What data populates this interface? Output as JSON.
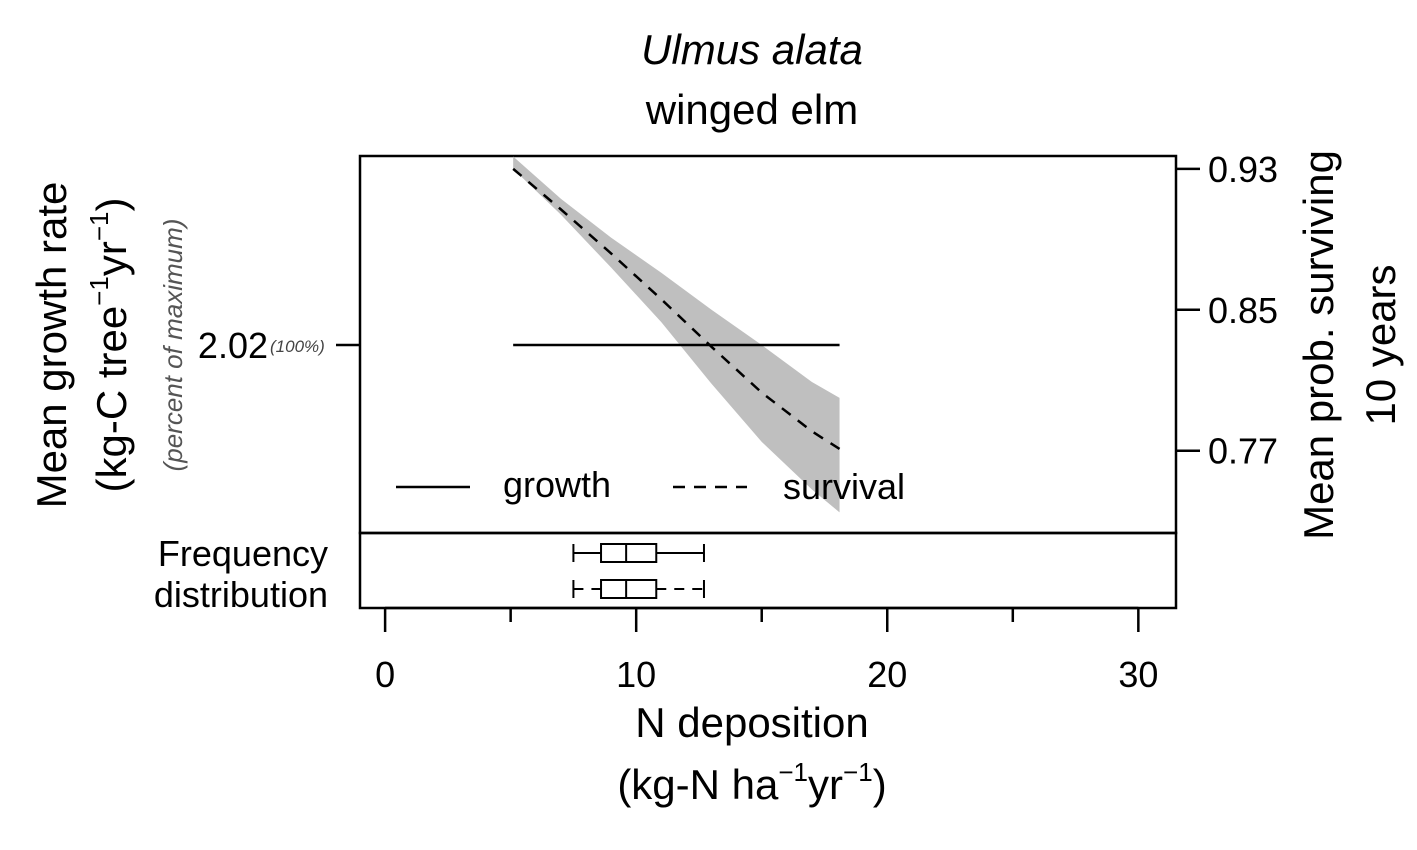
{
  "chart_data": {
    "type": "line",
    "title": "Ulmus alata",
    "subtitle": "winged elm",
    "xlabel": {
      "main": "N deposition",
      "unit_open": "(kg-N ha",
      "unit_mid": "yr",
      "unit_close": ")",
      "exp": "−1"
    },
    "ylabel_left": {
      "line1": "Mean growth rate",
      "unit_open": "(kg-C tree",
      "unit_mid": "yr",
      "unit_close": ")",
      "exp": "−1",
      "note": "(percent of maximum)"
    },
    "ylabel_right": {
      "line1": "Mean prob. surviving",
      "line2": "10 years"
    },
    "xlim": [
      -1,
      31.5
    ],
    "x_ticks": [
      0,
      10,
      20,
      30
    ],
    "x_tick_labels": [
      "0",
      "10",
      "20",
      "30"
    ],
    "x_minor_ticks": [
      5,
      15,
      25
    ],
    "y_left_ticks": [
      {
        "value": 2.02,
        "label": "2.02",
        "pct": "(100%)"
      }
    ],
    "y_right_ticks": [
      {
        "value": 0.93,
        "label": "0.93"
      },
      {
        "value": 0.85,
        "label": "0.85"
      },
      {
        "value": 0.77,
        "label": "0.77"
      }
    ],
    "y_right_lim": [
      0.7233,
      0.9373
    ],
    "series": [
      {
        "name": "growth",
        "line_style": "solid",
        "axis": "left",
        "x": [
          5.1,
          18.1
        ],
        "y": [
          2.02,
          2.02
        ]
      },
      {
        "name": "survival",
        "line_style": "dashed",
        "axis": "right",
        "x": [
          5.1,
          7,
          9,
          11,
          13,
          15,
          17,
          18.1
        ],
        "y": [
          0.93,
          0.907,
          0.882,
          0.856,
          0.829,
          0.803,
          0.781,
          0.771
        ],
        "ci_lower": [
          0.93,
          0.904,
          0.874,
          0.843,
          0.808,
          0.775,
          0.748,
          0.735
        ],
        "ci_upper": [
          0.937,
          0.913,
          0.891,
          0.871,
          0.85,
          0.83,
          0.809,
          0.8
        ],
        "ci_color": "#bfbfbf"
      }
    ],
    "legend": {
      "placement": "bottom-left",
      "items": [
        {
          "label": "growth",
          "line_style": "solid"
        },
        {
          "label": "survival",
          "line_style": "dashed"
        }
      ]
    },
    "frequency_panel": {
      "label_line1": "Frequency",
      "label_line2": "distribution",
      "boxplots": [
        {
          "whisker_style": "solid",
          "min": 7.5,
          "q1": 8.6,
          "median": 9.6,
          "q3": 10.8,
          "max": 12.7
        },
        {
          "whisker_style": "dashed",
          "min": 7.5,
          "q1": 8.6,
          "median": 9.6,
          "q3": 10.8,
          "max": 12.7
        }
      ]
    }
  }
}
